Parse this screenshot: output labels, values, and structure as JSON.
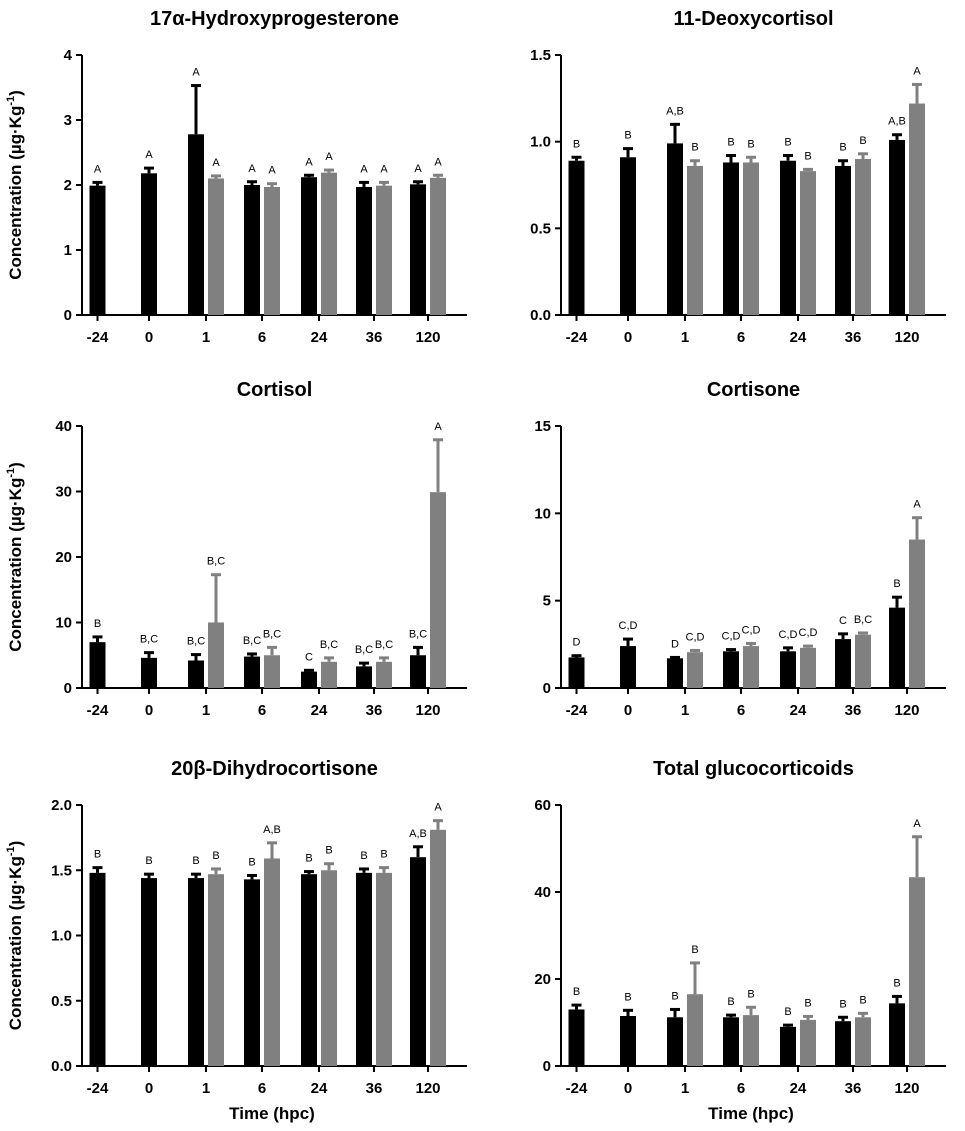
{
  "figure": {
    "series_colors": [
      "#000000",
      "#808080"
    ],
    "x_axis_label": "Time (hpc)"
  },
  "chart_data": [
    {
      "type": "bar",
      "title": "17α-Hydroxyprogesterone",
      "ylabel_text": "Concentration (µg·Kg",
      "ylabel_sup": "-1",
      "ylabel_end": ")",
      "xlabel": "",
      "categories": [
        "-24",
        "0",
        "1",
        "6",
        "24",
        "36",
        "120"
      ],
      "ylim": [
        0,
        4
      ],
      "yticks": [
        "0",
        "1",
        "2",
        "3",
        "4"
      ],
      "series": [
        {
          "name": "black",
          "color": "#000000",
          "values": [
            1.99,
            2.18,
            2.78,
            2.0,
            2.12,
            1.97,
            2.01
          ],
          "errors": [
            0.05,
            0.08,
            0.75,
            0.05,
            0.03,
            0.07,
            0.04
          ],
          "letters": [
            "A",
            "A",
            "A",
            "A",
            "A",
            "A",
            "A"
          ]
        },
        {
          "name": "grey",
          "color": "#808080",
          "values": [
            null,
            null,
            2.1,
            1.97,
            2.19,
            1.99,
            2.11
          ],
          "errors": [
            null,
            null,
            0.04,
            0.05,
            0.04,
            0.05,
            0.04
          ],
          "letters": [
            "",
            "",
            "A",
            "A",
            "A",
            "A",
            "A"
          ]
        }
      ]
    },
    {
      "type": "bar",
      "title": "11-Deoxycortisol",
      "xlabel": "",
      "categories": [
        "-24",
        "0",
        "1",
        "6",
        "24",
        "36",
        "120"
      ],
      "ylim": [
        0,
        1.5
      ],
      "yticks": [
        "0.0",
        "0.5",
        "1.0",
        "1.5"
      ],
      "series": [
        {
          "name": "black",
          "color": "#000000",
          "values": [
            0.89,
            0.91,
            0.99,
            0.88,
            0.89,
            0.86,
            1.01
          ],
          "errors": [
            0.02,
            0.05,
            0.11,
            0.04,
            0.03,
            0.03,
            0.03
          ],
          "letters": [
            "B",
            "B",
            "A,B",
            "B",
            "B",
            "B",
            "A,B"
          ]
        },
        {
          "name": "grey",
          "color": "#808080",
          "values": [
            null,
            null,
            0.86,
            0.88,
            0.83,
            0.9,
            1.22
          ],
          "errors": [
            null,
            null,
            0.03,
            0.03,
            0.01,
            0.03,
            0.11
          ],
          "letters": [
            "",
            "",
            "B",
            "B",
            "B",
            "B",
            "A"
          ]
        }
      ]
    },
    {
      "type": "bar",
      "title": "Cortisol",
      "ylabel_text": "Concentration (µg·Kg",
      "ylabel_sup": "-1",
      "ylabel_end": ")",
      "xlabel": "",
      "categories": [
        "-24",
        "0",
        "1",
        "6",
        "24",
        "36",
        "120"
      ],
      "ylim": [
        0,
        40
      ],
      "yticks": [
        "0",
        "10",
        "20",
        "30",
        "40"
      ],
      "series": [
        {
          "name": "black",
          "color": "#000000",
          "values": [
            7.0,
            4.6,
            4.2,
            4.8,
            2.5,
            3.3,
            5.0
          ],
          "errors": [
            0.8,
            0.8,
            0.9,
            0.4,
            0.2,
            0.5,
            1.2
          ],
          "letters": [
            "B",
            "B,C",
            "B,C",
            "B,C",
            "C",
            "B,C",
            "B,C"
          ]
        },
        {
          "name": "grey",
          "color": "#808080",
          "values": [
            null,
            null,
            10.0,
            5.0,
            4.0,
            4.0,
            29.9
          ],
          "errors": [
            null,
            null,
            7.3,
            1.2,
            0.6,
            0.6,
            8.0
          ],
          "letters": [
            "",
            "",
            "B,C",
            "B,C",
            "B,C",
            "B,C",
            "A"
          ]
        }
      ]
    },
    {
      "type": "bar",
      "title": "Cortisone",
      "xlabel": "",
      "categories": [
        "-24",
        "0",
        "1",
        "6",
        "24",
        "36",
        "120"
      ],
      "ylim": [
        0,
        15
      ],
      "yticks": [
        "0",
        "5",
        "10",
        "15"
      ],
      "series": [
        {
          "name": "black",
          "color": "#000000",
          "values": [
            1.75,
            2.4,
            1.7,
            2.1,
            2.1,
            2.8,
            4.6
          ],
          "errors": [
            0.1,
            0.4,
            0.05,
            0.1,
            0.2,
            0.3,
            0.6
          ],
          "letters": [
            "D",
            "C,D",
            "D",
            "C,D",
            "C,D",
            "C",
            "B"
          ]
        },
        {
          "name": "grey",
          "color": "#808080",
          "values": [
            null,
            null,
            2.05,
            2.4,
            2.3,
            3.05,
            8.5
          ],
          "errors": [
            null,
            null,
            0.1,
            0.15,
            0.1,
            0.1,
            1.25
          ],
          "letters": [
            "",
            "",
            "C,D",
            "C,D",
            "C,D",
            "B,C",
            "A"
          ]
        }
      ]
    },
    {
      "type": "bar",
      "title": "20β-Dihydrocortisone",
      "ylabel_text": "Concentration (µg·Kg",
      "ylabel_sup": "-1",
      "ylabel_end": ")",
      "xlabel": "Time (hpc)",
      "categories": [
        "-24",
        "0",
        "1",
        "6",
        "24",
        "36",
        "120"
      ],
      "ylim": [
        0,
        2
      ],
      "yticks": [
        "0.0",
        "0.5",
        "1.0",
        "1.5",
        "2.0"
      ],
      "series": [
        {
          "name": "black",
          "color": "#000000",
          "values": [
            1.48,
            1.44,
            1.44,
            1.43,
            1.47,
            1.48,
            1.6
          ],
          "errors": [
            0.04,
            0.03,
            0.03,
            0.03,
            0.02,
            0.03,
            0.08
          ],
          "letters": [
            "B",
            "B",
            "B",
            "B",
            "B",
            "B",
            "A,B"
          ]
        },
        {
          "name": "grey",
          "color": "#808080",
          "values": [
            null,
            null,
            1.47,
            1.59,
            1.5,
            1.48,
            1.81
          ],
          "errors": [
            null,
            null,
            0.04,
            0.12,
            0.05,
            0.04,
            0.07
          ],
          "letters": [
            "",
            "",
            "B",
            "A,B",
            "B",
            "B",
            "A"
          ]
        }
      ]
    },
    {
      "type": "bar",
      "title": "Total glucocorticoids",
      "xlabel": "Time (hpc)",
      "categories": [
        "-24",
        "0",
        "1",
        "6",
        "24",
        "36",
        "120"
      ],
      "ylim": [
        0,
        60
      ],
      "yticks": [
        "0",
        "20",
        "40",
        "60"
      ],
      "series": [
        {
          "name": "black",
          "color": "#000000",
          "values": [
            13.0,
            11.5,
            11.2,
            11.2,
            9.0,
            10.3,
            14.4
          ],
          "errors": [
            1.0,
            1.3,
            1.8,
            0.5,
            0.4,
            0.9,
            1.6
          ],
          "letters": [
            "B",
            "B",
            "B",
            "B",
            "B",
            "B",
            "B"
          ]
        },
        {
          "name": "grey",
          "color": "#808080",
          "values": [
            null,
            null,
            16.5,
            11.7,
            10.6,
            11.2,
            43.4
          ],
          "errors": [
            null,
            null,
            7.2,
            1.8,
            0.8,
            0.9,
            9.3
          ],
          "letters": [
            "",
            "",
            "B",
            "B",
            "B",
            "B",
            "A"
          ]
        }
      ]
    }
  ]
}
